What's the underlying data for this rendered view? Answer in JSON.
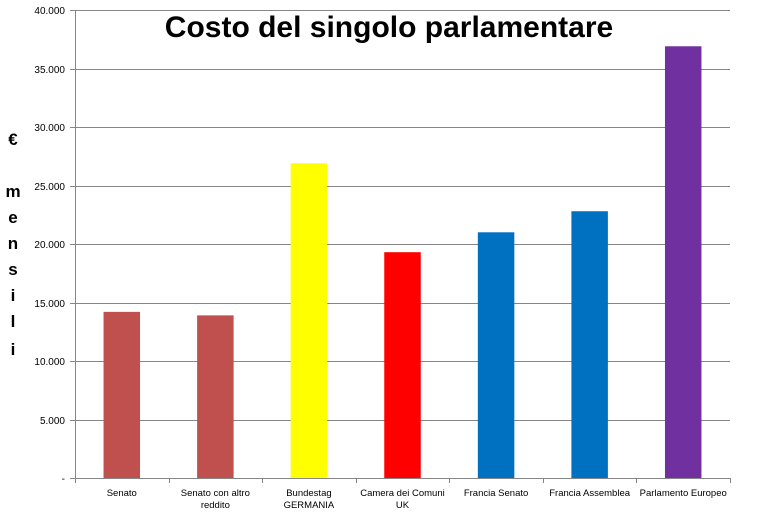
{
  "chart_data": {
    "type": "bar",
    "title": "Costo del singolo parlamentare",
    "ylabel": "€ mensili",
    "ylabel_lines": [
      "€",
      "m",
      "e",
      "n",
      "s",
      "i",
      "l",
      "i"
    ],
    "ylim": [
      0,
      40000
    ],
    "y_ticks": [
      0,
      5000,
      10000,
      15000,
      20000,
      25000,
      30000,
      35000,
      40000
    ],
    "y_tick_labels": [
      "-",
      "5.000",
      "10.000",
      "15.000",
      "20.000",
      "25.000",
      "30.000",
      "35.000",
      "40.000"
    ],
    "grid": true,
    "categories": [
      [
        "Senato"
      ],
      [
        "Senato con altro",
        "reddito"
      ],
      [
        "Bundestag",
        "GERMANIA"
      ],
      [
        "Camera dei Comuni",
        "UK"
      ],
      [
        "Francia Senato"
      ],
      [
        "Francia Assemblea"
      ],
      [
        "Parlamento Europeo"
      ]
    ],
    "values": [
      14200,
      13900,
      26900,
      19300,
      21000,
      22800,
      36900
    ],
    "colors": [
      "#C0504D",
      "#C0504D",
      "#FFFF00",
      "#FF0000",
      "#0070C0",
      "#0070C0",
      "#7030A0"
    ]
  }
}
